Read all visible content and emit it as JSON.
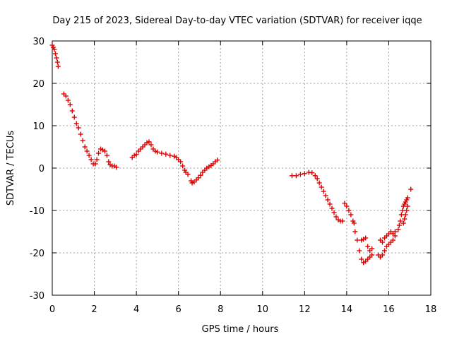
{
  "chart_data": {
    "type": "scatter",
    "title": "Day 215 of 2023, Sidereal Day-to-day VTEC variation (SDTVAR) for receiver iqqe",
    "xlabel": "GPS time / hours",
    "ylabel": "SDTVAR / TECUs",
    "xlim": [
      0,
      18
    ],
    "ylim": [
      -30,
      30
    ],
    "xticks": [
      0,
      2,
      4,
      6,
      8,
      10,
      12,
      14,
      16,
      18
    ],
    "yticks": [
      30,
      20,
      10,
      0,
      -10,
      -20,
      -30
    ],
    "grid": true,
    "marker": "+",
    "series": [
      {
        "name": "SDTVAR",
        "color": "#e00000",
        "points": [
          [
            0.0,
            29.0
          ],
          [
            0.05,
            28.5
          ],
          [
            0.1,
            28.0
          ],
          [
            0.15,
            27.0
          ],
          [
            0.2,
            26.0
          ],
          [
            0.25,
            25.0
          ],
          [
            0.28,
            24.0
          ],
          [
            0.55,
            17.5
          ],
          [
            0.65,
            17.0
          ],
          [
            0.75,
            16.0
          ],
          [
            0.85,
            15.0
          ],
          [
            0.95,
            13.5
          ],
          [
            1.05,
            12.0
          ],
          [
            1.15,
            10.5
          ],
          [
            1.25,
            9.5
          ],
          [
            1.35,
            8.0
          ],
          [
            1.45,
            6.5
          ],
          [
            1.55,
            5.0
          ],
          [
            1.65,
            4.0
          ],
          [
            1.75,
            3.0
          ],
          [
            1.85,
            2.0
          ],
          [
            1.95,
            1.0
          ],
          [
            2.05,
            1.0
          ],
          [
            2.12,
            2.0
          ],
          [
            2.2,
            3.5
          ],
          [
            2.3,
            4.5
          ],
          [
            2.4,
            4.3
          ],
          [
            2.5,
            4.0
          ],
          [
            2.6,
            3.0
          ],
          [
            2.68,
            1.5
          ],
          [
            2.75,
            0.8
          ],
          [
            2.85,
            0.5
          ],
          [
            2.95,
            0.5
          ],
          [
            3.05,
            0.2
          ],
          [
            3.8,
            2.5
          ],
          [
            3.9,
            3.0
          ],
          [
            4.0,
            3.2
          ],
          [
            4.1,
            4.0
          ],
          [
            4.2,
            4.5
          ],
          [
            4.3,
            5.0
          ],
          [
            4.4,
            5.5
          ],
          [
            4.5,
            6.0
          ],
          [
            4.6,
            6.2
          ],
          [
            4.7,
            5.5
          ],
          [
            4.8,
            4.5
          ],
          [
            4.9,
            4.0
          ],
          [
            5.0,
            3.8
          ],
          [
            5.2,
            3.5
          ],
          [
            5.4,
            3.3
          ],
          [
            5.6,
            3.0
          ],
          [
            5.8,
            2.8
          ],
          [
            5.9,
            2.5
          ],
          [
            6.0,
            2.0
          ],
          [
            6.1,
            1.5
          ],
          [
            6.2,
            0.5
          ],
          [
            6.3,
            -0.5
          ],
          [
            6.35,
            -1.0
          ],
          [
            6.45,
            -1.5
          ],
          [
            6.6,
            -3.0
          ],
          [
            6.65,
            -3.5
          ],
          [
            6.75,
            -3.3
          ],
          [
            6.85,
            -2.8
          ],
          [
            6.95,
            -2.3
          ],
          [
            7.05,
            -1.7
          ],
          [
            7.15,
            -1.0
          ],
          [
            7.25,
            -0.5
          ],
          [
            7.35,
            0.0
          ],
          [
            7.45,
            0.3
          ],
          [
            7.55,
            0.6
          ],
          [
            7.65,
            1.0
          ],
          [
            7.75,
            1.5
          ],
          [
            7.85,
            1.9
          ],
          [
            11.4,
            -1.8
          ],
          [
            11.6,
            -1.8
          ],
          [
            11.8,
            -1.5
          ],
          [
            12.0,
            -1.3
          ],
          [
            12.2,
            -1.0
          ],
          [
            12.35,
            -1.1
          ],
          [
            12.5,
            -1.8
          ],
          [
            12.6,
            -2.5
          ],
          [
            12.7,
            -3.5
          ],
          [
            12.8,
            -4.5
          ],
          [
            12.9,
            -5.5
          ],
          [
            13.0,
            -6.5
          ],
          [
            13.1,
            -7.5
          ],
          [
            13.2,
            -8.5
          ],
          [
            13.3,
            -9.5
          ],
          [
            13.4,
            -10.5
          ],
          [
            13.5,
            -11.5
          ],
          [
            13.6,
            -12.2
          ],
          [
            13.7,
            -12.5
          ],
          [
            13.8,
            -12.5
          ],
          [
            13.9,
            -8.3
          ],
          [
            14.0,
            -9.0
          ],
          [
            14.1,
            -10.0
          ],
          [
            14.2,
            -11.0
          ],
          [
            14.3,
            -12.5
          ],
          [
            14.35,
            -13.0
          ],
          [
            14.4,
            -15.0
          ],
          [
            14.5,
            -17.0
          ],
          [
            14.6,
            -19.5
          ],
          [
            14.7,
            -21.5
          ],
          [
            14.8,
            -22.3
          ],
          [
            14.9,
            -22.0
          ],
          [
            15.0,
            -21.5
          ],
          [
            15.1,
            -21.0
          ],
          [
            15.2,
            -20.5
          ],
          [
            14.7,
            -17.0
          ],
          [
            14.8,
            -16.8
          ],
          [
            14.9,
            -16.5
          ],
          [
            15.0,
            -18.5
          ],
          [
            15.1,
            -19.5
          ],
          [
            15.2,
            -19.0
          ],
          [
            15.5,
            -20.5
          ],
          [
            15.6,
            -21.0
          ],
          [
            15.7,
            -20.5
          ],
          [
            15.8,
            -19.5
          ],
          [
            15.9,
            -18.5
          ],
          [
            16.0,
            -18.0
          ],
          [
            16.1,
            -17.5
          ],
          [
            16.2,
            -17.0
          ],
          [
            16.3,
            -16.0
          ],
          [
            15.6,
            -17.0
          ],
          [
            15.7,
            -17.5
          ],
          [
            15.8,
            -16.5
          ],
          [
            15.9,
            -16.0
          ],
          [
            16.0,
            -15.5
          ],
          [
            16.1,
            -15.0
          ],
          [
            16.2,
            -15.5
          ],
          [
            16.3,
            -15.0
          ],
          [
            16.45,
            -14.5
          ],
          [
            16.5,
            -13.5
          ],
          [
            16.55,
            -12.5
          ],
          [
            16.6,
            -11.0
          ],
          [
            16.65,
            -10.0
          ],
          [
            16.7,
            -9.0
          ],
          [
            16.75,
            -8.5
          ],
          [
            16.8,
            -8.0
          ],
          [
            16.85,
            -7.5
          ],
          [
            16.9,
            -7.0
          ],
          [
            16.7,
            -13.0
          ],
          [
            16.75,
            -12.0
          ],
          [
            16.8,
            -11.0
          ],
          [
            16.85,
            -10.0
          ],
          [
            16.9,
            -9.0
          ],
          [
            17.05,
            -5.0
          ]
        ]
      }
    ]
  }
}
